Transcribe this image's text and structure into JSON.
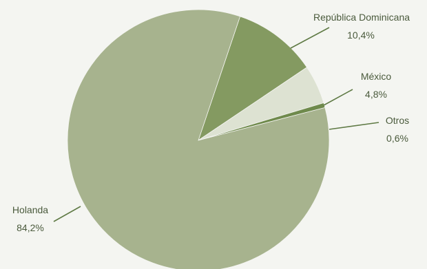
{
  "chart_data": {
    "type": "pie",
    "slices": [
      {
        "label": "República Dominicana",
        "value": 10.4,
        "value_label": "10,4%",
        "color": "#849a61"
      },
      {
        "label": "México",
        "value": 4.8,
        "value_label": "4,8%",
        "color": "#dde2d2"
      },
      {
        "label": "Otros",
        "value": 0.6,
        "value_label": "0,6%",
        "color": "#6f8a4c"
      },
      {
        "label": "Holanda",
        "value": 84.2,
        "value_label": "84,2%",
        "color": "#a7b38e"
      }
    ],
    "start_angle_deg": 18.6,
    "direction": "clockwise"
  }
}
